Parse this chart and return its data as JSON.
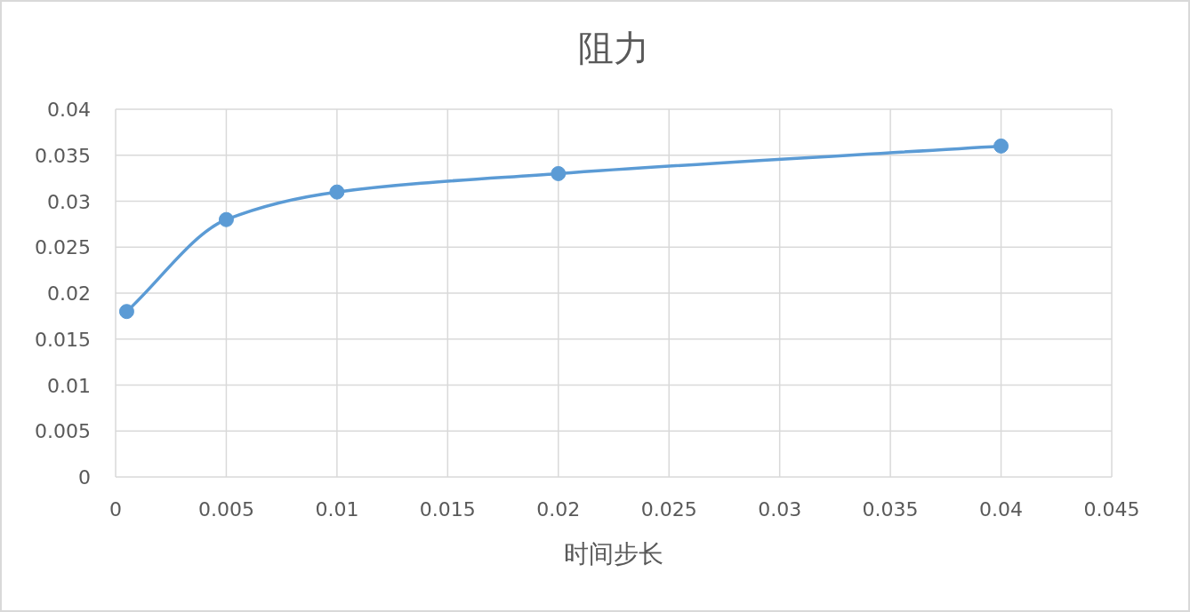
{
  "chart_data": {
    "type": "line",
    "title": "阻力",
    "xlabel": "时间步长",
    "x": [
      0.0005,
      0.005,
      0.01,
      0.02,
      0.04
    ],
    "series": [
      {
        "color": "#5b9bd5",
        "values": [
          0.018,
          0.028,
          0.031,
          0.033,
          0.036
        ]
      }
    ],
    "xlim": [
      0,
      0.045
    ],
    "xticks": [
      0,
      0.005,
      0.01,
      0.015,
      0.02,
      0.025,
      0.03,
      0.035,
      0.04,
      0.045
    ],
    "ylim": [
      0,
      0.04
    ],
    "yticks": [
      0,
      0.005,
      0.01,
      0.015,
      0.02,
      0.025,
      0.03,
      0.035,
      0.04
    ],
    "grid": true,
    "marker": "circle",
    "line_style": "solid"
  }
}
